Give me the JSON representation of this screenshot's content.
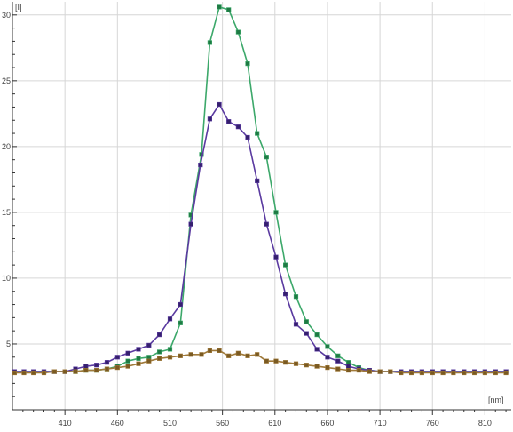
{
  "chart_data": {
    "type": "line",
    "title": "",
    "xlabel": "",
    "ylabel": "",
    "x_unit_label": "[nm]",
    "y_unit_label": "[I]",
    "xlim": [
      360,
      835
    ],
    "ylim": [
      0,
      31
    ],
    "x_ticks": [
      410,
      460,
      510,
      560,
      610,
      660,
      710,
      760,
      810
    ],
    "x_tick_labels": [
      "410",
      "460",
      "510",
      "560",
      "610",
      "660",
      "710",
      "760",
      "810"
    ],
    "y_ticks": [
      5,
      10,
      15,
      20,
      25,
      30
    ],
    "y_tick_labels": [
      "5",
      "10",
      "15",
      "20",
      "25",
      "30"
    ],
    "grid": true,
    "legend": "none",
    "series": [
      {
        "color": "#3ca86a",
        "marker_color": "#1f7a44",
        "points": [
          [
            362,
            2.9
          ],
          [
            371,
            2.9
          ],
          [
            380,
            2.9
          ],
          [
            390,
            2.9
          ],
          [
            400,
            2.9
          ],
          [
            410,
            2.9
          ],
          [
            420,
            2.9
          ],
          [
            430,
            3.0
          ],
          [
            440,
            3.0
          ],
          [
            450,
            3.1
          ],
          [
            460,
            3.3
          ],
          [
            470,
            3.7
          ],
          [
            480,
            3.9
          ],
          [
            490,
            4.0
          ],
          [
            500,
            4.4
          ],
          [
            510,
            4.6
          ],
          [
            520,
            6.6
          ],
          [
            530,
            14.8
          ],
          [
            540,
            19.4
          ],
          [
            548,
            27.9
          ],
          [
            557,
            30.6
          ],
          [
            566,
            30.4
          ],
          [
            575,
            28.7
          ],
          [
            584,
            26.3
          ],
          [
            593,
            21.0
          ],
          [
            602,
            19.2
          ],
          [
            611,
            15.0
          ],
          [
            620,
            11.0
          ],
          [
            630,
            8.6
          ],
          [
            640,
            6.7
          ],
          [
            650,
            5.7
          ],
          [
            660,
            4.8
          ],
          [
            670,
            4.1
          ],
          [
            680,
            3.6
          ],
          [
            690,
            3.2
          ],
          [
            700,
            3.0
          ],
          [
            710,
            2.9
          ],
          [
            720,
            2.9
          ],
          [
            730,
            2.9
          ],
          [
            740,
            2.9
          ],
          [
            750,
            2.9
          ],
          [
            760,
            2.9
          ],
          [
            770,
            2.9
          ],
          [
            780,
            2.9
          ],
          [
            790,
            2.9
          ],
          [
            800,
            2.9
          ],
          [
            810,
            2.9
          ],
          [
            820,
            2.9
          ],
          [
            830,
            2.9
          ]
        ]
      },
      {
        "color": "#5a3aa0",
        "marker_color": "#35206e",
        "points": [
          [
            362,
            2.9
          ],
          [
            371,
            2.9
          ],
          [
            380,
            2.9
          ],
          [
            390,
            2.9
          ],
          [
            400,
            2.9
          ],
          [
            410,
            2.9
          ],
          [
            420,
            3.1
          ],
          [
            430,
            3.3
          ],
          [
            440,
            3.4
          ],
          [
            450,
            3.6
          ],
          [
            460,
            4.0
          ],
          [
            470,
            4.3
          ],
          [
            480,
            4.6
          ],
          [
            490,
            4.9
          ],
          [
            500,
            5.7
          ],
          [
            510,
            6.9
          ],
          [
            520,
            8.0
          ],
          [
            530,
            14.1
          ],
          [
            539,
            18.6
          ],
          [
            548,
            22.1
          ],
          [
            557,
            23.2
          ],
          [
            566,
            21.9
          ],
          [
            575,
            21.5
          ],
          [
            584,
            20.7
          ],
          [
            593,
            17.4
          ],
          [
            602,
            14.1
          ],
          [
            611,
            11.6
          ],
          [
            620,
            8.8
          ],
          [
            630,
            6.5
          ],
          [
            640,
            5.8
          ],
          [
            650,
            4.6
          ],
          [
            660,
            4.0
          ],
          [
            670,
            3.7
          ],
          [
            680,
            3.3
          ],
          [
            690,
            3.1
          ],
          [
            700,
            3.0
          ],
          [
            710,
            2.9
          ],
          [
            720,
            2.9
          ],
          [
            730,
            2.9
          ],
          [
            740,
            2.9
          ],
          [
            750,
            2.9
          ],
          [
            760,
            2.9
          ],
          [
            770,
            2.9
          ],
          [
            780,
            2.9
          ],
          [
            790,
            2.9
          ],
          [
            800,
            2.9
          ],
          [
            810,
            2.9
          ],
          [
            820,
            2.9
          ],
          [
            830,
            2.9
          ]
        ]
      },
      {
        "color": "#a07a3a",
        "marker_color": "#7a5a22",
        "points": [
          [
            362,
            2.8
          ],
          [
            371,
            2.8
          ],
          [
            380,
            2.8
          ],
          [
            390,
            2.8
          ],
          [
            400,
            2.9
          ],
          [
            410,
            2.9
          ],
          [
            420,
            2.9
          ],
          [
            430,
            3.0
          ],
          [
            440,
            3.0
          ],
          [
            450,
            3.1
          ],
          [
            460,
            3.2
          ],
          [
            470,
            3.3
          ],
          [
            480,
            3.5
          ],
          [
            490,
            3.7
          ],
          [
            500,
            3.9
          ],
          [
            510,
            4.0
          ],
          [
            520,
            4.1
          ],
          [
            530,
            4.2
          ],
          [
            540,
            4.2
          ],
          [
            548,
            4.5
          ],
          [
            557,
            4.5
          ],
          [
            566,
            4.1
          ],
          [
            575,
            4.3
          ],
          [
            584,
            4.1
          ],
          [
            593,
            4.2
          ],
          [
            602,
            3.7
          ],
          [
            611,
            3.7
          ],
          [
            620,
            3.6
          ],
          [
            630,
            3.5
          ],
          [
            640,
            3.4
          ],
          [
            650,
            3.3
          ],
          [
            660,
            3.2
          ],
          [
            670,
            3.1
          ],
          [
            680,
            3.0
          ],
          [
            690,
            3.0
          ],
          [
            700,
            2.9
          ],
          [
            710,
            2.9
          ],
          [
            720,
            2.9
          ],
          [
            730,
            2.8
          ],
          [
            740,
            2.8
          ],
          [
            750,
            2.8
          ],
          [
            760,
            2.8
          ],
          [
            770,
            2.8
          ],
          [
            780,
            2.8
          ],
          [
            790,
            2.8
          ],
          [
            800,
            2.8
          ],
          [
            810,
            2.8
          ],
          [
            820,
            2.8
          ],
          [
            830,
            2.8
          ]
        ]
      }
    ]
  }
}
